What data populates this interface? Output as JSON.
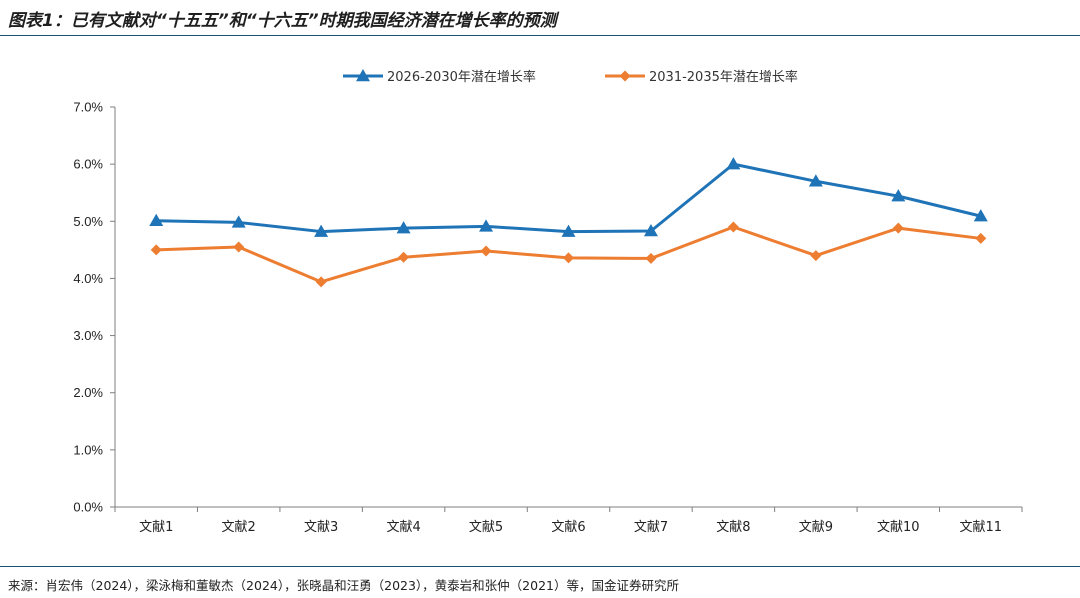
{
  "title": "图表1：已有文献对“十五五”和“十六五”时期我国经济潜在增长率的预测",
  "source": "来源：肖宏伟（2024），梁泳梅和董敏杰（2024），张晓晶和汪勇（2023），黄泰岩和张仲（2021）等，国金证券研究所",
  "chart_data": {
    "type": "line",
    "categories": [
      "文献1",
      "文献2",
      "文献3",
      "文献4",
      "文献5",
      "文献6",
      "文献7",
      "文献8",
      "文献9",
      "文献10",
      "文献11"
    ],
    "series": [
      {
        "name": "2026-2030年潜在增长率",
        "color": "#1f73b7",
        "marker": "triangle",
        "values": [
          5.01,
          4.98,
          4.82,
          4.88,
          4.91,
          4.82,
          4.83,
          6.0,
          5.7,
          5.44,
          5.09
        ]
      },
      {
        "name": "2031-2035年潜在增长率",
        "color": "#ed7d31",
        "marker": "diamond",
        "values": [
          4.5,
          4.55,
          3.94,
          4.37,
          4.48,
          4.36,
          4.35,
          4.9,
          4.4,
          4.88,
          4.7
        ]
      }
    ],
    "yticks": [
      "0.0%",
      "1.0%",
      "2.0%",
      "3.0%",
      "4.0%",
      "5.0%",
      "6.0%",
      "7.0%"
    ],
    "ylim": [
      0,
      7
    ],
    "ylabel": "",
    "xlabel": "",
    "legend": "top-center"
  }
}
